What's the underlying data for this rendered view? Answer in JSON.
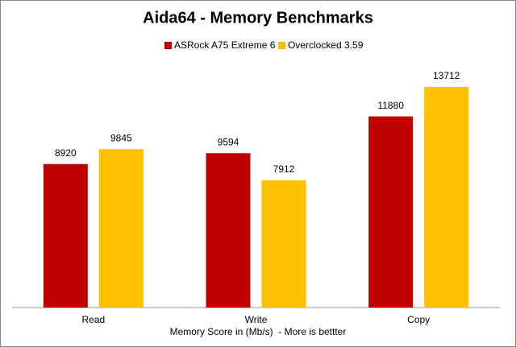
{
  "chart_data": {
    "type": "bar",
    "title": "Aida64 - Memory Benchmarks",
    "x_label": "Memory Score in (Mb/s)  - More is bettter",
    "categories": [
      "Read",
      "Write",
      "Copy"
    ],
    "series": [
      {
        "name": "ASRock A75 Extreme 6",
        "color": "#c00000",
        "values": [
          8920,
          9594,
          11880
        ]
      },
      {
        "name": "Overclocked 3.59",
        "color": "#ffc000",
        "values": [
          9845,
          7912,
          13712
        ]
      }
    ],
    "legend": "top"
  }
}
